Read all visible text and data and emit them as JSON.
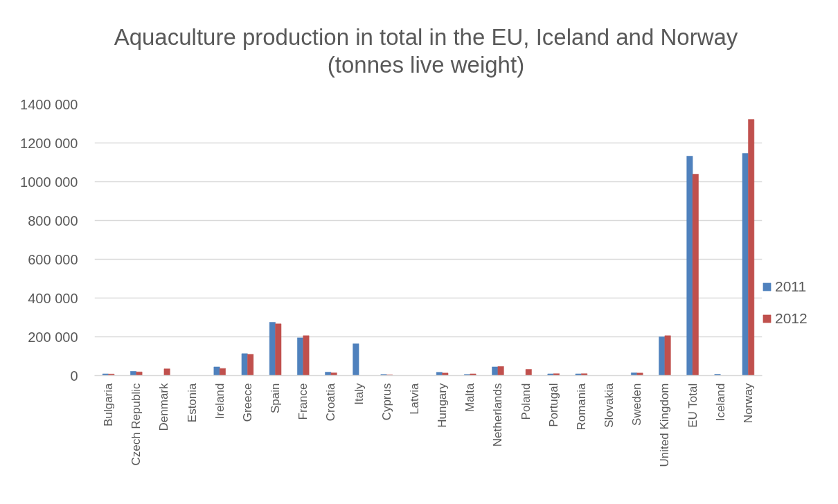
{
  "chart_data": {
    "type": "bar",
    "title": "Aquaculture production in total in the EU, Iceland and Norway\n(tonnes live weight)",
    "categories": [
      "Bulgaria",
      "Czech Republic",
      "Denmark",
      "Estonia",
      "Ireland",
      "Greece",
      "Spain",
      "France",
      "Croatia",
      "Italy",
      "Cyprus",
      "Latvia",
      "Hungary",
      "Malta",
      "Netherlands",
      "Poland",
      "Portugal",
      "Romania",
      "Slovakia",
      "Sweden",
      "United Kingdom",
      "EU Total",
      "Iceland",
      "Norway"
    ],
    "series": [
      {
        "name": "2011",
        "color": "#4f81bd",
        "values": [
          9000,
          22000,
          null,
          null,
          45000,
          113000,
          275000,
          195000,
          18000,
          164000,
          6000,
          null,
          17000,
          6000,
          45000,
          null,
          9000,
          9000,
          null,
          14000,
          200000,
          1132000,
          7000,
          1146000
        ]
      },
      {
        "name": "2012",
        "color": "#c0504d",
        "values": [
          8000,
          19000,
          35000,
          null,
          37000,
          110000,
          267000,
          206000,
          14000,
          null,
          4000,
          null,
          13000,
          9000,
          47000,
          32000,
          10000,
          10000,
          null,
          13000,
          206000,
          1039000,
          null,
          1321000
        ]
      }
    ],
    "ylim": [
      0,
      1400000
    ],
    "yticks": [
      0,
      {
        "value": 200000,
        "label": "200 000"
      },
      {
        "value": 400000,
        "label": "400 000"
      },
      {
        "value": 600000,
        "label": "600 000"
      },
      {
        "value": 800000,
        "label": "800 000"
      },
      {
        "value": 1000000,
        "label": "1000 000"
      },
      {
        "value": 1200000,
        "label": "1200 000"
      },
      {
        "value": 1400000,
        "label": "1400 000"
      }
    ],
    "grid": "y",
    "legend": "right"
  }
}
